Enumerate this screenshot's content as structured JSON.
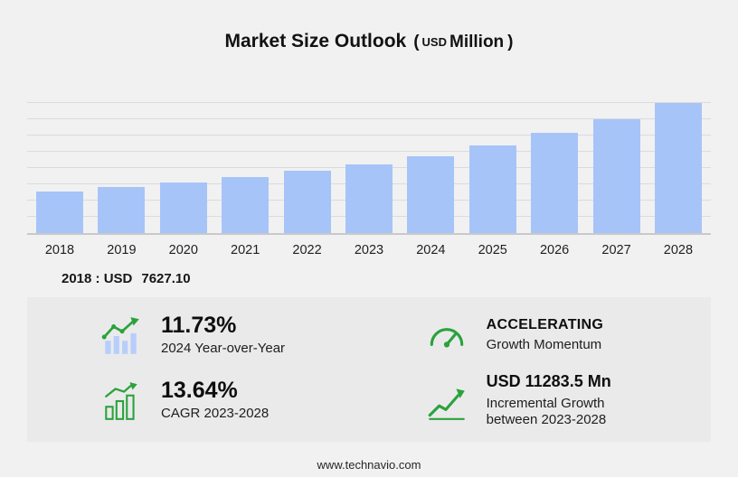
{
  "title": {
    "main": "Market Size Outlook",
    "paren_open": "(",
    "usd": "USD",
    "million": "Million",
    "paren_close": ")"
  },
  "chart_data": {
    "type": "bar",
    "categories": [
      "2018",
      "2019",
      "2020",
      "2021",
      "2022",
      "2023",
      "2024",
      "2025",
      "2026",
      "2027",
      "2028"
    ],
    "values": [
      7627.1,
      8450,
      9320,
      10310,
      11400,
      12605,
      14084,
      16070,
      18340,
      20920,
      23890
    ],
    "title": "Market Size Outlook (USD Million)",
    "xlabel": "",
    "ylabel": "USD Million",
    "ylim": [
      0,
      24000
    ],
    "grid": true,
    "legend": "none",
    "bar_color": "#a6c4f8",
    "gridline_color": "#dbdbdc"
  },
  "annotation": {
    "label": "2018 : USD",
    "value": "7627.10"
  },
  "stats": {
    "yoy": {
      "value": "11.73%",
      "label": "2024 Year-over-Year",
      "icon": "bar-chart-trend-up-icon"
    },
    "momentum": {
      "title": "ACCELERATING",
      "label": "Growth Momentum",
      "icon": "speedometer-icon"
    },
    "cagr": {
      "value": "13.64%",
      "label": "CAGR 2023-2028",
      "icon": "growth-bars-icon"
    },
    "incremental": {
      "value": "USD 11283.5 Mn",
      "line1": "Incremental Growth",
      "line2": "between 2023-2028",
      "icon": "rising-arrow-icon"
    }
  },
  "colors": {
    "accent_green": "#2ba23c",
    "bar_blue": "#a6c4f8"
  },
  "footer": {
    "url": "www.technavio.com"
  }
}
